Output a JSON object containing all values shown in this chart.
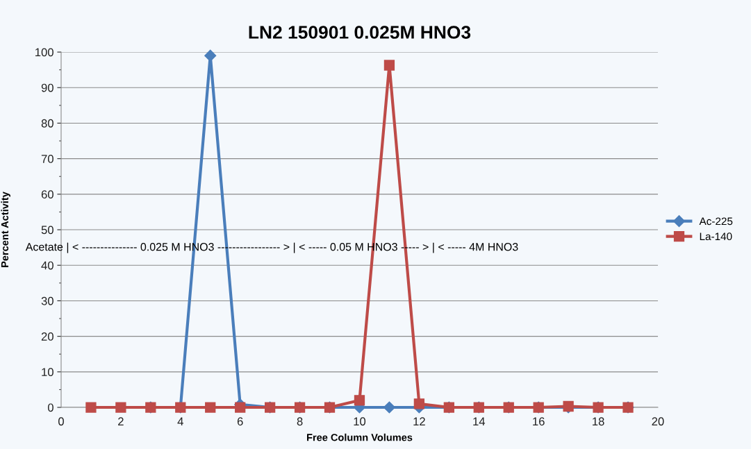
{
  "chart_data": {
    "type": "line",
    "title": "LN2 150901 0.025M HNO3",
    "xlabel": "Free Column Volumes",
    "ylabel": "Percent Activity",
    "x": [
      1,
      2,
      3,
      4,
      5,
      6,
      7,
      8,
      9,
      10,
      11,
      12,
      13,
      14,
      15,
      16,
      17,
      18,
      19
    ],
    "series": [
      {
        "name": "Ac-225",
        "color": "#4a7ebb",
        "marker": "diamond",
        "values": [
          null,
          null,
          0,
          0,
          99,
          0.8,
          0,
          0,
          0,
          0,
          0,
          0,
          0,
          0,
          0,
          0,
          0,
          0,
          0
        ]
      },
      {
        "name": "La-140",
        "color": "#be4b48",
        "marker": "square",
        "values": [
          0,
          0,
          0,
          0,
          0,
          0,
          0,
          0,
          0,
          2,
          96.3,
          1,
          0,
          0,
          0,
          0,
          0.3,
          0,
          0
        ]
      }
    ],
    "xlim": [
      0,
      20
    ],
    "xticks": [
      0,
      2,
      4,
      6,
      8,
      10,
      12,
      14,
      16,
      18,
      20
    ],
    "ylim": [
      0,
      100
    ],
    "yticks": [
      0,
      10,
      20,
      30,
      40,
      50,
      60,
      70,
      80,
      90,
      100
    ],
    "grid": "y",
    "legend": "right",
    "annotations": [
      "Acetate | < --------------- 0.025 M HNO3 ----------------- > | < ----- 0.05 M HNO3 ----- > | < ----- 4M HNO3"
    ]
  }
}
